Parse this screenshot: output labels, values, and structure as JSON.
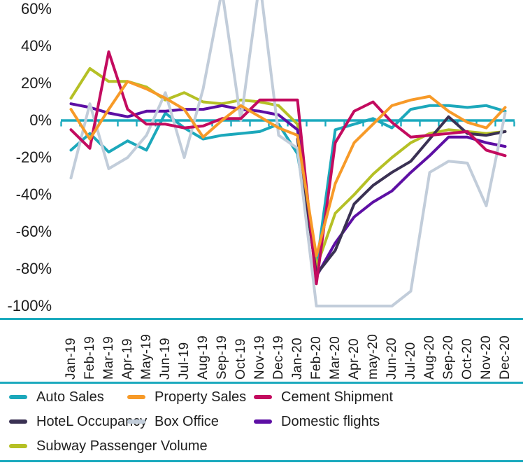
{
  "chart_data": {
    "type": "line",
    "title": "",
    "x_labels": [
      "Jan-19",
      "Feb-19",
      "Mar-19",
      "Apr-19",
      "May-19",
      "Jun-19",
      "Jul-19",
      "Aug-19",
      "Sep-19",
      "Oct-19",
      "Nov-19",
      "Dec-19",
      "Jan-20",
      "Feb-20",
      "Mar-20",
      "Apr-20",
      "may-20",
      "Jun-20",
      "Jul-20",
      "Aug-20",
      "Sep-20",
      "Oct-20",
      "Nov-20",
      "Dec-20"
    ],
    "y_ticks": [
      {
        "label": "60%",
        "value": 60
      },
      {
        "label": "40%",
        "value": 40
      },
      {
        "label": "20%",
        "value": 20
      },
      {
        "label": "0%",
        "value": 0
      },
      {
        "label": "-20%",
        "value": -20
      },
      {
        "label": "-40%",
        "value": -40
      },
      {
        "label": "-60%",
        "value": -60
      },
      {
        "label": "-80%",
        "value": -80
      },
      {
        "label": "-100%",
        "value": -100
      }
    ],
    "ylim": [
      -100,
      60
    ],
    "grid": false,
    "legend_position": "bottom",
    "axis_color": "#1CAABE",
    "series": [
      {
        "name": "Auto Sales",
        "color": "#1CA8BB",
        "values": [
          -16,
          -7,
          -17,
          -11,
          -16,
          4,
          -4,
          -10,
          -8,
          -7,
          -6,
          -2,
          -18,
          -79,
          -5,
          -2,
          1,
          -4,
          6,
          8,
          8,
          7,
          8,
          5
        ]
      },
      {
        "name": "Property Sales",
        "color": "#F79A28",
        "values": [
          6,
          -10,
          6,
          21,
          17,
          12,
          6,
          -9,
          0,
          8,
          2,
          -4,
          -8,
          -73,
          -34,
          -12,
          -2,
          8,
          11,
          13,
          5,
          -1,
          -4,
          7
        ]
      },
      {
        "name": "Cement Shipment",
        "color": "#C30B5F",
        "values": [
          -5,
          -15,
          37,
          6,
          -2,
          -2,
          -4,
          -3,
          1,
          1,
          11,
          11,
          11,
          -88,
          -12,
          5,
          10,
          -1,
          -9,
          -8,
          -7,
          -6,
          -16,
          -19
        ]
      },
      {
        "name": "HoteL Occupancy",
        "color": "#3A3153",
        "values": [
          null,
          null,
          null,
          null,
          null,
          null,
          null,
          null,
          null,
          null,
          null,
          null,
          -10,
          -83,
          -70,
          -45,
          -35,
          -28,
          -22,
          -10,
          2,
          -7,
          -8,
          -6
        ]
      },
      {
        "name": "Box Office",
        "color": "#C2CDDA",
        "values": [
          -31,
          9,
          -26,
          -20,
          -8,
          15,
          -20,
          17,
          70,
          0,
          75,
          -8,
          -15,
          -100,
          -100,
          -100,
          -100,
          -100,
          -92,
          -28,
          -22,
          -23,
          -46,
          4
        ]
      },
      {
        "name": "Domestic flights",
        "color": "#5D0FA4",
        "values": [
          9,
          7,
          4,
          2,
          5,
          5,
          6,
          6,
          8,
          6,
          5,
          3,
          -5,
          -84,
          -66,
          -52,
          -44,
          -38,
          -28,
          -19,
          -9,
          -9,
          -12,
          -14
        ]
      },
      {
        "name": "Subway Passenger Volume",
        "color": "#B5C025",
        "values": [
          12,
          28,
          21,
          21,
          18,
          11,
          15,
          10,
          9,
          11,
          10,
          8,
          -2,
          -79,
          -50,
          -40,
          -29,
          -20,
          -12,
          -7,
          -5,
          -6,
          -7,
          -6
        ]
      }
    ]
  }
}
